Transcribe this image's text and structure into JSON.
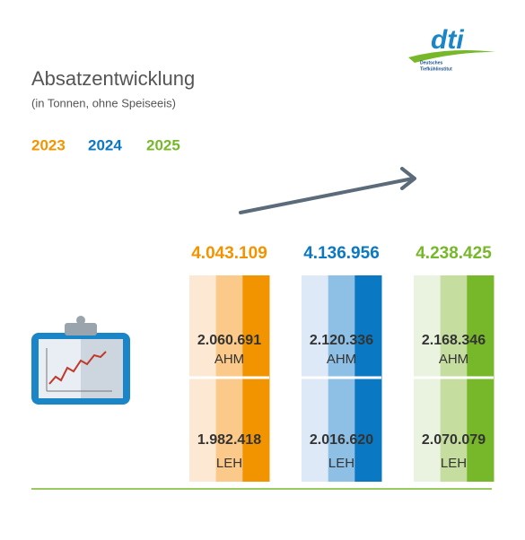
{
  "header": {
    "title": "Absatzentwicklung",
    "subtitle": "(in Tonnen, ohne Speiseeis)"
  },
  "logo": {
    "text": "dti",
    "line1": "Deutsches",
    "line2": "Tiefkühlinstitut"
  },
  "years": [
    {
      "year": "2023",
      "total": "4.043.109",
      "colors": [
        "#fde9d3",
        "#fbc98a",
        "#f29400"
      ],
      "segments": [
        {
          "value": "2.060.691",
          "label": "AHM"
        },
        {
          "value": "1.982.418",
          "label": "LEH"
        }
      ]
    },
    {
      "year": "2024",
      "total": "4.136.956",
      "colors": [
        "#dde9f7",
        "#8ec0e6",
        "#0a78c2"
      ],
      "segments": [
        {
          "value": "2.120.336",
          "label": "AHM"
        },
        {
          "value": "2.016.620",
          "label": "LEH"
        }
      ]
    },
    {
      "year": "2025",
      "total": "4.238.425",
      "colors": [
        "#eaf3e0",
        "#c5dea0",
        "#76b82a"
      ],
      "segments": [
        {
          "value": "2.168.346",
          "label": "AHM"
        },
        {
          "value": "2.070.079",
          "label": "LEH"
        }
      ]
    }
  ]
}
